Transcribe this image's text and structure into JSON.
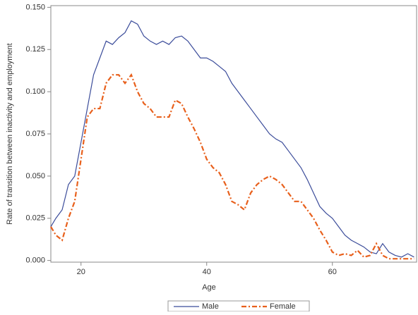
{
  "chart_data": {
    "type": "line",
    "x_label": "Age",
    "y_label": "Rate of transition between inactivity and employment",
    "x": [
      15.2,
      16,
      17,
      18,
      19,
      20,
      21,
      22,
      23,
      24,
      25,
      26,
      27,
      28,
      29,
      30,
      31,
      32,
      33,
      34,
      35,
      36,
      37,
      38,
      39,
      40,
      41,
      42,
      43,
      44,
      45,
      46,
      47,
      48,
      49,
      50,
      51,
      52,
      53,
      54,
      55,
      56,
      57,
      58,
      59,
      60,
      61,
      62,
      63,
      64,
      65,
      66,
      67,
      68,
      69,
      70,
      71,
      72,
      73
    ],
    "series": [
      {
        "name": "Male",
        "color": "#3b4c9a",
        "dash": "solid",
        "values": [
          0.02,
          0.025,
          0.03,
          0.045,
          0.05,
          0.07,
          0.09,
          0.11,
          0.12,
          0.13,
          0.128,
          0.132,
          0.135,
          0.142,
          0.14,
          0.133,
          0.13,
          0.128,
          0.13,
          0.128,
          0.132,
          0.133,
          0.13,
          0.125,
          0.12,
          0.12,
          0.118,
          0.115,
          0.112,
          0.105,
          0.1,
          0.095,
          0.09,
          0.085,
          0.08,
          0.075,
          0.072,
          0.07,
          0.065,
          0.06,
          0.055,
          0.048,
          0.04,
          0.032,
          0.028,
          0.025,
          0.02,
          0.015,
          0.012,
          0.01,
          0.008,
          0.005,
          0.004,
          0.01,
          0.005,
          0.003,
          0.002,
          0.004,
          0.002
        ]
      },
      {
        "name": "Female",
        "color": "#e8601c",
        "dash": "dashdot",
        "values": [
          0.02,
          0.015,
          0.012,
          0.025,
          0.035,
          0.06,
          0.085,
          0.09,
          0.09,
          0.105,
          0.11,
          0.11,
          0.105,
          0.11,
          0.1,
          0.093,
          0.09,
          0.085,
          0.085,
          0.085,
          0.095,
          0.093,
          0.085,
          0.078,
          0.07,
          0.06,
          0.055,
          0.052,
          0.045,
          0.035,
          0.033,
          0.03,
          0.04,
          0.045,
          0.048,
          0.05,
          0.048,
          0.045,
          0.04,
          0.035,
          0.035,
          0.03,
          0.025,
          0.018,
          0.012,
          0.005,
          0.003,
          0.004,
          0.003,
          0.006,
          0.002,
          0.003,
          0.01,
          0.003,
          0.001,
          0.001,
          0.001,
          0.001,
          0.001
        ]
      }
    ],
    "xlim": [
      15.2,
      73.4
    ],
    "xticks": [
      20,
      40,
      60
    ],
    "ylim": [
      -0.001,
      0.151
    ],
    "yticks": [
      {
        "value": 0,
        "label": "0.000"
      },
      {
        "value": 0.025,
        "label": "0.025"
      },
      {
        "value": 0.05,
        "label": "0.050"
      },
      {
        "value": 0.075,
        "label": "0.075"
      },
      {
        "value": 0.1,
        "label": "0.100"
      },
      {
        "value": 0.125,
        "label": "0.125"
      },
      {
        "value": 0.15,
        "label": "0.150"
      }
    ],
    "legend": "bottom"
  }
}
